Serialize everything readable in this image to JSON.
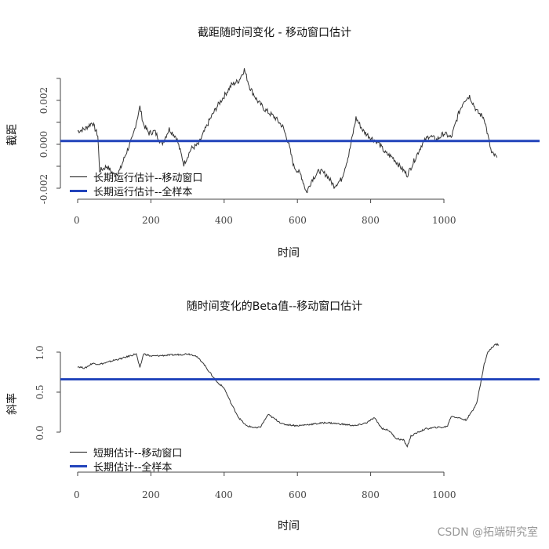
{
  "chart_data": [
    {
      "type": "line",
      "title": "截距随时间变化 - 移动窗口估计",
      "xlabel": "时间",
      "ylabel": "截距",
      "xlim": [
        0,
        1150
      ],
      "ylim": [
        -0.0025,
        0.0035
      ],
      "xticks": [
        0,
        200,
        400,
        600,
        800,
        1000
      ],
      "yticks": [
        -0.002,
        0.0,
        0.002
      ],
      "ytick_labels": [
        "-0.002",
        "0.000",
        "0.002"
      ],
      "grid": false,
      "legend_position": "bottom-left",
      "series": [
        {
          "name": "长期运行估计--移动窗口",
          "color": "#333333",
          "x": [
            0,
            20,
            40,
            55,
            60,
            80,
            100,
            115,
            130,
            150,
            170,
            180,
            195,
            210,
            230,
            250,
            270,
            290,
            310,
            330,
            360,
            380,
            400,
            420,
            440,
            455,
            470,
            490,
            510,
            540,
            560,
            575,
            590,
            610,
            625,
            640,
            660,
            680,
            700,
            720,
            740,
            760,
            780,
            800,
            820,
            840,
            860,
            880,
            900,
            920,
            940,
            960,
            980,
            1000,
            1020,
            1040,
            1055,
            1070,
            1090,
            1110,
            1130,
            1145
          ],
          "values": [
            0.0006,
            0.0007,
            0.001,
            0.0004,
            -0.0012,
            -0.001,
            -0.0014,
            -0.0012,
            -0.0005,
            0.0003,
            0.0017,
            0.0009,
            0.0005,
            0.0006,
            0.0,
            0.0007,
            0.0003,
            -0.0009,
            -0.0002,
            0.0,
            0.0011,
            0.0017,
            0.0022,
            0.0027,
            0.0029,
            0.0034,
            0.0026,
            0.002,
            0.0016,
            0.0012,
            0.0008,
            0.0001,
            -0.001,
            -0.0014,
            -0.0022,
            -0.0016,
            -0.0012,
            -0.0014,
            -0.0019,
            -0.0016,
            -0.0005,
            0.0012,
            0.0006,
            0.0003,
            0.0001,
            -0.0004,
            -0.0006,
            -0.001,
            -0.0014,
            -0.0007,
            0.0,
            0.0004,
            0.0002,
            0.0005,
            0.0003,
            0.0014,
            0.002,
            0.0022,
            0.0015,
            0.0012,
            -0.0004,
            -0.0006
          ]
        },
        {
          "name": "长期运行估计--全样本",
          "color": "#2244bb",
          "x": [
            0,
            1150
          ],
          "values": [
            0.00015,
            0.00015
          ]
        }
      ]
    },
    {
      "type": "line",
      "title": "随时间变化的Beta值--移动窗口估计",
      "xlabel": "时间",
      "ylabel": "斜率",
      "xlim": [
        0,
        1150
      ],
      "ylim": [
        -0.1,
        1.2
      ],
      "xticks": [
        0,
        200,
        400,
        600,
        800,
        1000
      ],
      "yticks": [
        0.0,
        0.5,
        1.0
      ],
      "ytick_labels": [
        "0.0",
        "0.5",
        "1.0"
      ],
      "grid": false,
      "legend_position": "bottom-left",
      "series": [
        {
          "name": "短期估计--移动窗口",
          "color": "#333333",
          "x": [
            0,
            20,
            40,
            60,
            80,
            100,
            120,
            140,
            160,
            170,
            180,
            200,
            240,
            280,
            300,
            320,
            340,
            360,
            380,
            400,
            420,
            440,
            460,
            480,
            490,
            500,
            520,
            540,
            560,
            600,
            640,
            680,
            720,
            760,
            790,
            810,
            830,
            850,
            870,
            890,
            900,
            910,
            930,
            950,
            980,
            1000,
            1010,
            1020,
            1040,
            1060,
            1080,
            1090,
            1100,
            1110,
            1120,
            1140,
            1150
          ],
          "values": [
            0.82,
            0.8,
            0.86,
            0.85,
            0.87,
            0.9,
            0.92,
            0.95,
            0.98,
            0.8,
            0.98,
            0.95,
            0.96,
            0.97,
            0.98,
            0.96,
            0.88,
            0.75,
            0.63,
            0.55,
            0.35,
            0.18,
            0.08,
            0.06,
            0.05,
            0.07,
            0.22,
            0.16,
            0.1,
            0.08,
            0.1,
            0.12,
            0.1,
            0.08,
            0.12,
            0.18,
            0.05,
            0.02,
            -0.08,
            -0.1,
            -0.18,
            -0.05,
            0.0,
            0.04,
            0.06,
            0.06,
            0.08,
            0.2,
            0.18,
            0.15,
            0.28,
            0.38,
            0.6,
            0.85,
            1.0,
            1.1,
            1.09
          ]
        },
        {
          "name": "长期估计--全样本",
          "color": "#2244bb",
          "x": [
            0,
            1150
          ],
          "values": [
            0.66,
            0.66
          ]
        }
      ]
    }
  ],
  "charts": {
    "top": {
      "title": "截距随时间变化 - 移动窗口估计",
      "ylabel": "截距",
      "xlabel": "时间",
      "yticks": [
        "-0.002",
        "0.000",
        "0.002"
      ],
      "xticks": [
        "0",
        "200",
        "400",
        "600",
        "800",
        "1000"
      ],
      "legend": [
        "长期运行估计--移动窗口",
        "长期运行估计--全样本"
      ]
    },
    "bottom": {
      "title": "随时间变化的Beta值--移动窗口估计",
      "ylabel": "斜率",
      "xlabel": "时间",
      "yticks": [
        "0.0",
        "0.5",
        "1.0"
      ],
      "xticks": [
        "0",
        "200",
        "400",
        "600",
        "800",
        "1000"
      ],
      "legend": [
        "短期估计--移动窗口",
        "长期估计--全样本"
      ]
    }
  },
  "watermark": "CSDN @拓端研究室"
}
